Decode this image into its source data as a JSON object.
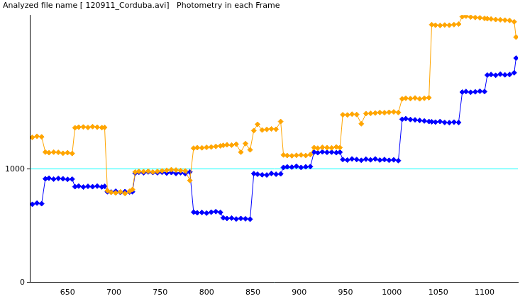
{
  "chart_data": {
    "type": "line",
    "title": "Analyzed file name [ 120911_Corduba.avi]   Photometry in each Frame",
    "x": [
      612,
      617,
      622,
      626,
      630,
      635,
      640,
      645,
      650,
      655,
      658,
      662,
      667,
      672,
      677,
      682,
      687,
      690,
      693,
      697,
      702,
      707,
      712,
      717,
      720,
      723,
      727,
      732,
      737,
      742,
      747,
      752,
      757,
      762,
      767,
      772,
      777,
      782,
      786,
      790,
      795,
      800,
      805,
      810,
      815,
      818,
      822,
      827,
      832,
      837,
      842,
      847,
      851,
      855,
      860,
      865,
      870,
      875,
      880,
      883,
      887,
      892,
      897,
      902,
      907,
      912,
      916,
      920,
      925,
      930,
      935,
      940,
      944,
      947,
      952,
      957,
      962,
      967,
      972,
      977,
      982,
      987,
      992,
      997,
      1002,
      1007,
      1011,
      1015,
      1020,
      1025,
      1030,
      1035,
      1040,
      1043,
      1047,
      1052,
      1057,
      1062,
      1067,
      1072,
      1076,
      1080,
      1085,
      1090,
      1095,
      1100,
      1103,
      1107,
      1112,
      1117,
      1122,
      1127,
      1132,
      1134
    ],
    "series": [
      {
        "color": "#ffa500",
        "marker": "diamond",
        "line_style": "solid",
        "values": [
          1280,
          1290,
          1285,
          1150,
          1145,
          1150,
          1148,
          1140,
          1145,
          1138,
          1365,
          1370,
          1372,
          1368,
          1375,
          1370,
          1366,
          1368,
          810,
          795,
          790,
          800,
          785,
          805,
          820,
          975,
          980,
          978,
          982,
          975,
          980,
          985,
          990,
          995,
          992,
          988,
          985,
          900,
          1185,
          1190,
          1188,
          1192,
          1195,
          1200,
          1205,
          1210,
          1215,
          1212,
          1220,
          1150,
          1225,
          1170,
          1340,
          1395,
          1345,
          1350,
          1355,
          1352,
          1420,
          1125,
          1120,
          1118,
          1122,
          1125,
          1120,
          1128,
          1190,
          1185,
          1192,
          1190,
          1188,
          1195,
          1190,
          1480,
          1478,
          1485,
          1482,
          1400,
          1490,
          1492,
          1495,
          1500,
          1498,
          1502,
          1505,
          1500,
          1620,
          1625,
          1622,
          1628,
          1620,
          1625,
          1630,
          2275,
          2270,
          2268,
          2272,
          2270,
          2275,
          2280,
          2345,
          2350,
          2342,
          2338,
          2335,
          2330,
          2328,
          2325,
          2320,
          2318,
          2315,
          2312,
          2300,
          2165
        ]
      },
      {
        "color": "#0000ff",
        "marker": "diamond",
        "line_style": "solid",
        "values": [
          690,
          700,
          695,
          915,
          920,
          912,
          918,
          915,
          910,
          912,
          845,
          850,
          842,
          848,
          845,
          850,
          843,
          848,
          800,
          798,
          805,
          795,
          802,
          798,
          800,
          965,
          972,
          968,
          975,
          970,
          968,
          972,
          965,
          970,
          962,
          968,
          960,
          975,
          620,
          615,
          618,
          612,
          620,
          625,
          618,
          570,
          565,
          568,
          560,
          565,
          562,
          558,
          960,
          955,
          950,
          948,
          962,
          955,
          958,
          1015,
          1020,
          1018,
          1025,
          1015,
          1020,
          1022,
          1150,
          1145,
          1152,
          1148,
          1150,
          1145,
          1150,
          1085,
          1080,
          1090,
          1085,
          1078,
          1088,
          1082,
          1090,
          1080,
          1085,
          1078,
          1082,
          1075,
          1440,
          1445,
          1438,
          1435,
          1430,
          1425,
          1420,
          1418,
          1415,
          1420,
          1412,
          1410,
          1415,
          1412,
          1680,
          1685,
          1678,
          1682,
          1688,
          1685,
          1830,
          1835,
          1828,
          1838,
          1832,
          1835,
          1850,
          1980
        ]
      }
    ],
    "xlim": [
      610,
      1136
    ],
    "xticks": [
      650,
      700,
      750,
      800,
      850,
      900,
      950,
      1000,
      1050,
      1100
    ],
    "ylim": [
      0,
      2360
    ],
    "yticks": [
      0,
      1000
    ],
    "grid": "y"
  }
}
